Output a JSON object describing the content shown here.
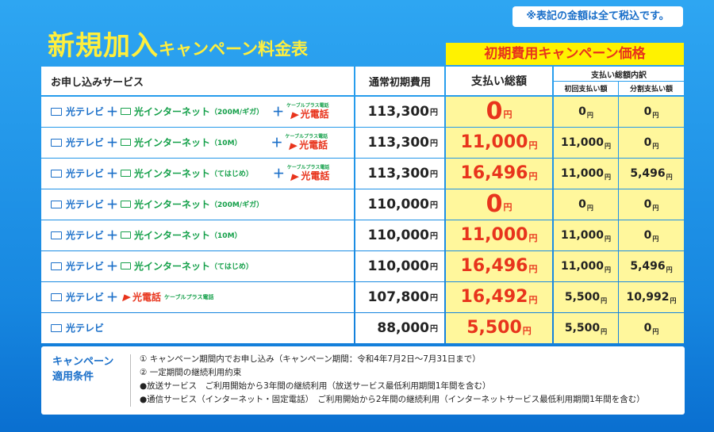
{
  "note": "※表記の金額は全て税込です。",
  "title": {
    "main": "新規加入",
    "sub": "キャンペーン料金表"
  },
  "campaign_header": "初期費用キャンペーン価格",
  "headers": {
    "service": "お申し込みサービス",
    "normal": "通常初期費用",
    "total": "支払い総額",
    "breakdown": "支払い総額内訳",
    "first": "初回支払い額",
    "split": "分割支払い額"
  },
  "yen": "円",
  "labels": {
    "tv": "光テレビ",
    "plus": "＋",
    "net": "光インターネット",
    "phone": "光電話",
    "cable_plus": "ケーブルプラス電話"
  },
  "rows": [
    {
      "net_plan": "（200M/ギガ）",
      "normal": "113,300",
      "total": "0",
      "first": "0",
      "split": "0"
    },
    {
      "net_plan": "（10M）",
      "normal": "113,300",
      "total": "11,000",
      "first": "11,000",
      "split": "0"
    },
    {
      "net_plan": "（てはじめ）",
      "normal": "113,300",
      "total": "16,496",
      "first": "11,000",
      "split": "5,496"
    },
    {
      "net_plan": "（200M/ギガ）",
      "normal": "110,000",
      "total": "0",
      "first": "0",
      "split": "0"
    },
    {
      "net_plan": "（10M）",
      "normal": "110,000",
      "total": "11,000",
      "first": "11,000",
      "split": "0"
    },
    {
      "net_plan": "（てはじめ）",
      "normal": "110,000",
      "total": "16,496",
      "first": "11,000",
      "split": "5,496"
    },
    {
      "net_plan": "",
      "normal": "107,800",
      "total": "16,492",
      "first": "5,500",
      "split": "10,992"
    },
    {
      "net_plan": "",
      "normal": "88,000",
      "total": "5,500",
      "first": "5,500",
      "split": "0"
    }
  ],
  "conditions": {
    "label_line1": "キャンペーン",
    "label_line2": "適用条件",
    "items": [
      "① キャンペーン期間内でお申し込み（キャンペーン期間：令和4年7月2日～7月31日まで）",
      "② 一定期間の継続利用約束",
      "●放送サービス　ご利用開始から3年間の継続利用（放送サービス最低利用期間1年間を含む）",
      "●通信サービス（インターネット・固定電話）　ご利用開始から2年間の継続利用（インターネットサービス最低利用期間1年間を含む）"
    ]
  }
}
